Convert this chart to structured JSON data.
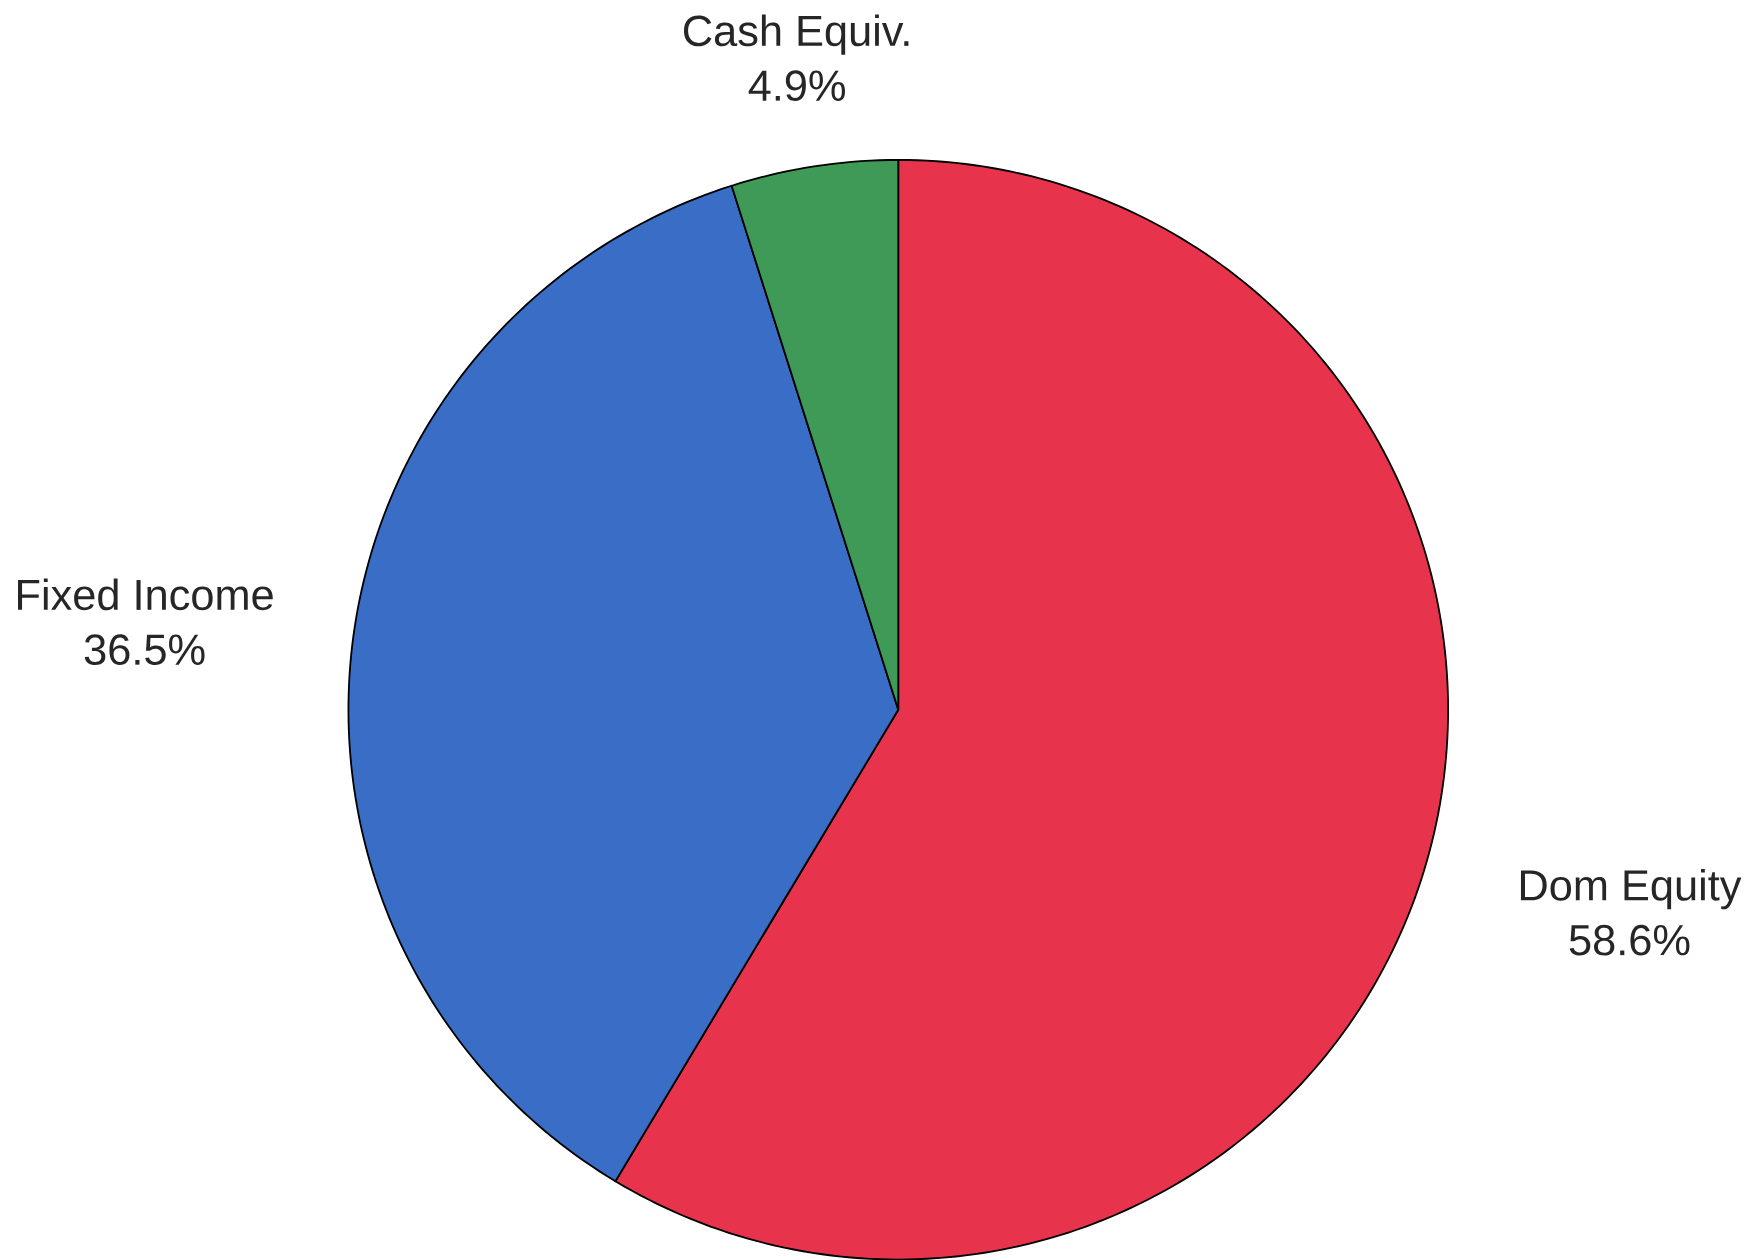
{
  "chart_data": {
    "type": "pie",
    "categories": [
      "Dom Equity",
      "Fixed Income",
      "Cash Equiv."
    ],
    "values": [
      58.6,
      36.5,
      4.9
    ],
    "colors": [
      "#e8334c",
      "#3a6ec6",
      "#3f9a58"
    ],
    "value_labels": [
      "58.6%",
      "36.5%",
      "4.9%"
    ]
  }
}
